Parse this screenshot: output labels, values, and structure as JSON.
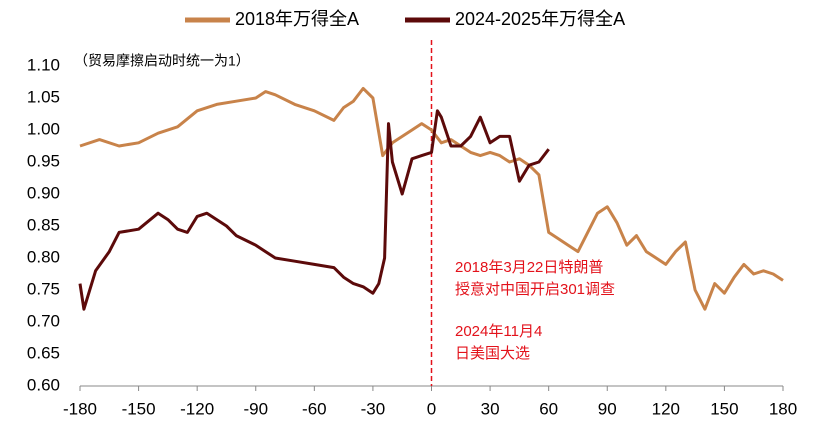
{
  "chart_data": {
    "type": "line",
    "annotation": "（贸易摩擦启动时统一为1）",
    "event_notes": [
      [
        "2018年3月22日特朗普",
        "授意对中国开启301调查"
      ],
      [
        "2024年11月4",
        "日美国大选"
      ]
    ],
    "reference_x": 0,
    "reference_color": "#e3121b",
    "legend": "top",
    "grid": false,
    "xlim": [
      -180,
      180
    ],
    "xticks": [
      -180,
      -150,
      -120,
      -90,
      -60,
      -30,
      0,
      30,
      60,
      90,
      120,
      150,
      180
    ],
    "ylim": [
      0.6,
      1.1
    ],
    "yticks": [
      {
        "value": 0.6,
        "label": "0.60"
      },
      {
        "value": 0.65,
        "label": "0.65"
      },
      {
        "value": 0.7,
        "label": "0.70"
      },
      {
        "value": 0.75,
        "label": "0.75"
      },
      {
        "value": 0.8,
        "label": "0.80"
      },
      {
        "value": 0.85,
        "label": "0.85"
      },
      {
        "value": 0.9,
        "label": "0.90"
      },
      {
        "value": 0.95,
        "label": "0.95"
      },
      {
        "value": 1.0,
        "label": "1.00"
      },
      {
        "value": 1.05,
        "label": "1.05"
      },
      {
        "value": 1.1,
        "label": "1.10"
      }
    ],
    "series": [
      {
        "name": "2018年万得全A",
        "color": "#c8834a",
        "x": [
          -180,
          -170,
          -160,
          -150,
          -140,
          -130,
          -120,
          -110,
          -100,
          -90,
          -85,
          -80,
          -70,
          -60,
          -50,
          -45,
          -40,
          -35,
          -30,
          -25,
          -20,
          -15,
          -10,
          -5,
          0,
          5,
          10,
          15,
          20,
          25,
          30,
          35,
          40,
          45,
          50,
          55,
          60,
          65,
          70,
          75,
          80,
          85,
          90,
          95,
          100,
          105,
          110,
          115,
          120,
          125,
          130,
          135,
          140,
          145,
          150,
          155,
          160,
          165,
          170,
          175,
          180
        ],
        "values": [
          0.975,
          0.985,
          0.975,
          0.98,
          0.995,
          1.005,
          1.03,
          1.04,
          1.045,
          1.05,
          1.06,
          1.055,
          1.04,
          1.03,
          1.015,
          1.035,
          1.045,
          1.065,
          1.05,
          0.96,
          0.98,
          0.99,
          1.0,
          1.01,
          1.0,
          0.98,
          0.985,
          0.975,
          0.965,
          0.96,
          0.965,
          0.96,
          0.95,
          0.955,
          0.945,
          0.93,
          0.84,
          0.83,
          0.82,
          0.81,
          0.84,
          0.87,
          0.88,
          0.855,
          0.82,
          0.835,
          0.81,
          0.8,
          0.79,
          0.81,
          0.825,
          0.75,
          0.72,
          0.76,
          0.745,
          0.77,
          0.79,
          0.775,
          0.78,
          0.775,
          0.765
        ]
      },
      {
        "name": "2024-2025年万得全A",
        "color": "#5c0a0a",
        "x": [
          -180,
          -178,
          -172,
          -165,
          -160,
          -150,
          -140,
          -135,
          -130,
          -125,
          -120,
          -115,
          -110,
          -105,
          -100,
          -90,
          -85,
          -80,
          -70,
          -60,
          -50,
          -45,
          -40,
          -35,
          -30,
          -27,
          -24,
          -22,
          -20,
          -15,
          -10,
          -5,
          0,
          3,
          5,
          10,
          15,
          20,
          25,
          30,
          35,
          40,
          45,
          50,
          55,
          60
        ],
        "values": [
          0.76,
          0.72,
          0.78,
          0.81,
          0.84,
          0.845,
          0.87,
          0.86,
          0.845,
          0.84,
          0.865,
          0.87,
          0.86,
          0.85,
          0.835,
          0.82,
          0.81,
          0.8,
          0.795,
          0.79,
          0.785,
          0.77,
          0.76,
          0.755,
          0.745,
          0.76,
          0.8,
          1.01,
          0.95,
          0.9,
          0.955,
          0.96,
          0.965,
          1.03,
          1.02,
          0.975,
          0.975,
          0.99,
          1.02,
          0.98,
          0.99,
          0.99,
          0.92,
          0.945,
          0.95,
          0.97
        ]
      }
    ]
  }
}
